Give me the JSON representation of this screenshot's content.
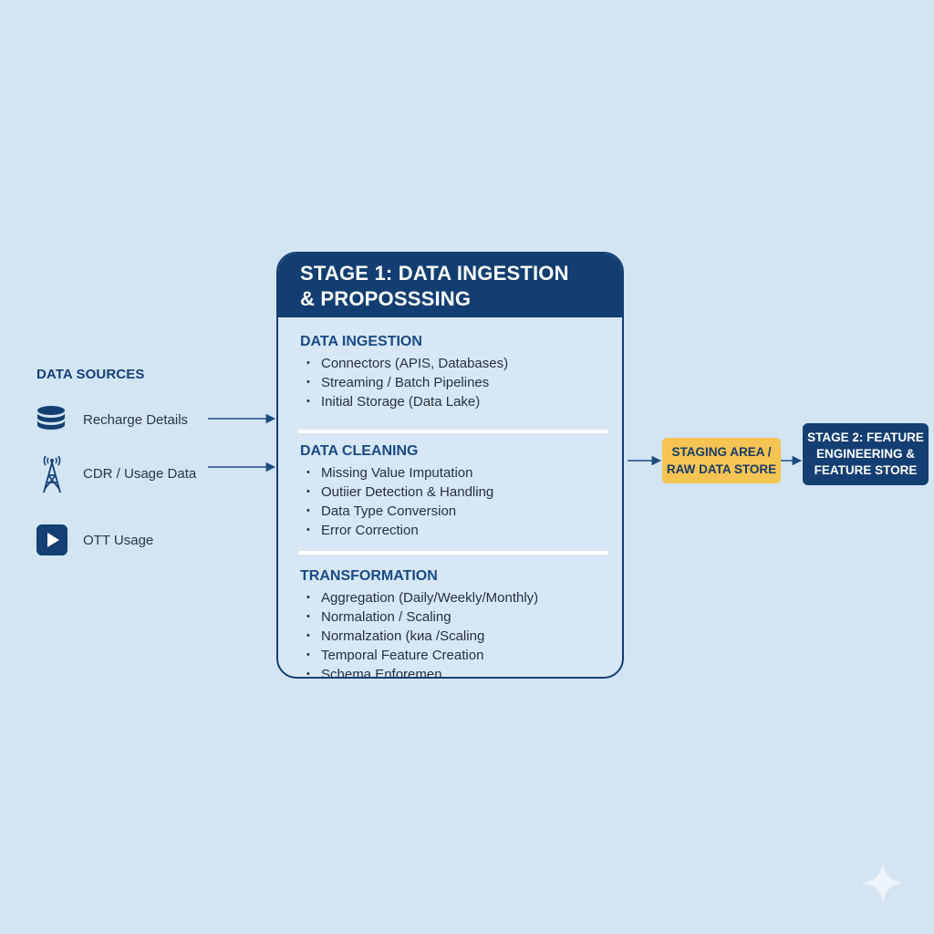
{
  "sources": {
    "title": "DATA SOURCES",
    "items": [
      {
        "label": "Recharge Details",
        "icon": "database-icon"
      },
      {
        "label": "CDR / Usage Data",
        "icon": "cell-tower-icon"
      },
      {
        "label": "OTT Usage",
        "icon": "play-icon"
      }
    ]
  },
  "stage1": {
    "title_line1": "STAGE 1: DATA INGESTION",
    "title_line2": "& PROPOSSSING",
    "sections": [
      {
        "title": "DATA INGESTION",
        "items": [
          "Connectors (APIS, Databases)",
          "Streaming / Batch Pipelines",
          "Initial Storage (Data Lake)"
        ]
      },
      {
        "title": "DATA CLEANING",
        "items": [
          "Missing Value Imputation",
          "Outiier Detection & Handling",
          "Data Type Conversion",
          "Error Correction"
        ]
      },
      {
        "title": "TRANSFORMATION",
        "items": [
          "Aggregation (Daily/Weekly/Monthly)",
          "Normalation / Scaling",
          "Normalzation (kиа /Scaling",
          "Temporal Feature Creation",
          "Schema Enforemen"
        ]
      }
    ]
  },
  "staging": {
    "line1": "STAGING AREA /",
    "line2": "RAW DATA STORE"
  },
  "stage2": {
    "line1": "STAGE 2: FEATURE",
    "line2": "ENGINEERING &",
    "line3": "FEATURE STORE"
  },
  "colors": {
    "navy": "#133e71",
    "accent_yellow": "#f6c453",
    "background": "#d3e4f3"
  }
}
